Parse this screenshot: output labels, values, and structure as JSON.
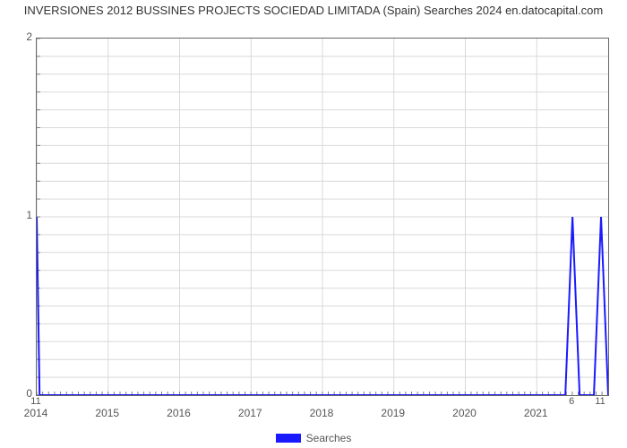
{
  "chart": {
    "type": "line",
    "title": "INVERSIONES 2012 BUSSINES PROJECTS SOCIEDAD LIMITADA (Spain) Searches 2024 en.datocapital.com",
    "title_fontsize": 13,
    "title_color": "#333333",
    "background_color": "#ffffff",
    "plot_border_color": "#666666",
    "grid_color": "#d9d9d9",
    "axis_label_color": "#555555",
    "axis_fontsize": 12,
    "line_color": "#1a1aff",
    "line_width": 2,
    "xlim": [
      2014,
      2022
    ],
    "x_ticks": [
      2014,
      2015,
      2016,
      2017,
      2018,
      2019,
      2020,
      2021
    ],
    "x_minor_step": 0.0833,
    "ylim": [
      0,
      2
    ],
    "y_ticks": [
      0,
      1,
      2
    ],
    "y_minor_step": 0.1,
    "y_grid_lines": 20,
    "series": {
      "label": "Searches",
      "points": [
        {
          "x": 2014.0,
          "y": 1,
          "label": "11"
        },
        {
          "x": 2014.04,
          "y": 0
        },
        {
          "x": 2021.4,
          "y": 0
        },
        {
          "x": 2021.5,
          "y": 1,
          "label": "6"
        },
        {
          "x": 2021.6,
          "y": 0
        },
        {
          "x": 2021.8,
          "y": 0
        },
        {
          "x": 2021.9,
          "y": 1,
          "label": "11"
        },
        {
          "x": 2022.0,
          "y": 0
        }
      ]
    },
    "legend": {
      "label": "Searches",
      "swatch_color": "#1a1aff"
    }
  }
}
